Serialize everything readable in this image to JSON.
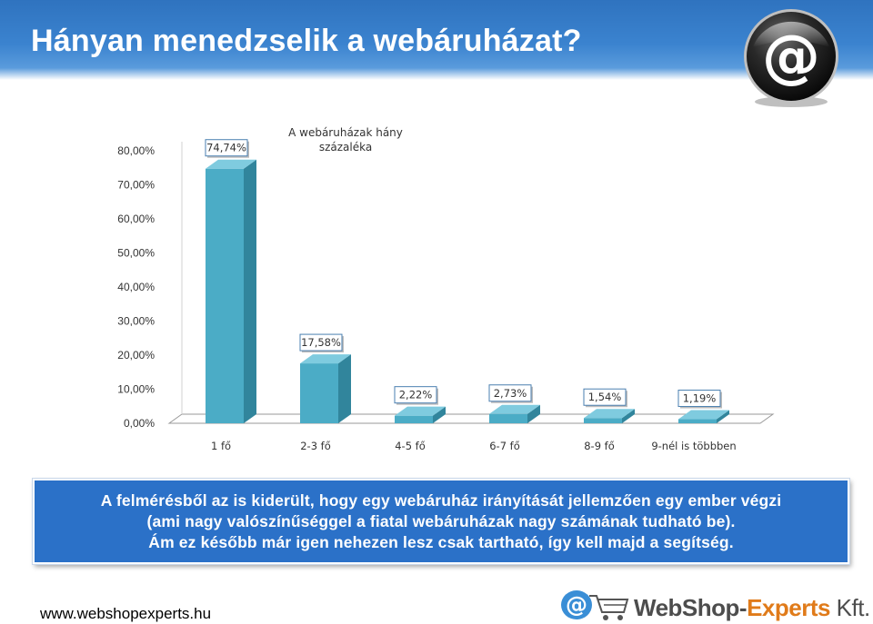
{
  "slide": {
    "title": "Hányan menedzselik a webáruházat?",
    "title_color": "#ffffff",
    "band_color": "#3b83cf"
  },
  "chart_data": {
    "type": "bar",
    "title": "",
    "legend": {
      "text": [
        "A webáruházak hány",
        "százaléka"
      ],
      "position": "top-center"
    },
    "categories": [
      "1 fő",
      "2-3 fő",
      "4-5 fő",
      "6-7 fő",
      "8-9 fő",
      "9-nél is több­ben"
    ],
    "series": [
      {
        "values": [
          74.74,
          17.58,
          2.22,
          2.73,
          1.54,
          1.19
        ],
        "value_labels": [
          "74,74%",
          "17,58%",
          "2,22%",
          "2,73%",
          "1,54%",
          "1,19%"
        ],
        "color": "#4bacc6"
      }
    ],
    "y_ticks": [
      "0,00%",
      "10,00%",
      "20,00%",
      "30,00%",
      "40,00%",
      "50,00%",
      "60,00%",
      "70,00%",
      "80,00%"
    ],
    "ylim": [
      0,
      80
    ],
    "grid": false,
    "style": "3d-column"
  },
  "note": {
    "lines": [
      "A felmérésből az is kiderült, hogy egy webáruház irányítását jellemzően egy ember végzi",
      "(ami nagy valószínűséggel a fiatal webáruházak nagy számának tudható be).",
      "Ám ez később már igen nehezen lesz csak tartható, így kell majd a segítség."
    ],
    "background": "#2b71c8"
  },
  "footer": {
    "url": "www.webshopexperts.hu",
    "brand_part1": "WebShop-",
    "brand_part2": "Experts",
    "brand_part3": " Kft.",
    "icon": "at-sign-cart-icon"
  },
  "decor": {
    "badge_icon": "at-sign-icon"
  }
}
